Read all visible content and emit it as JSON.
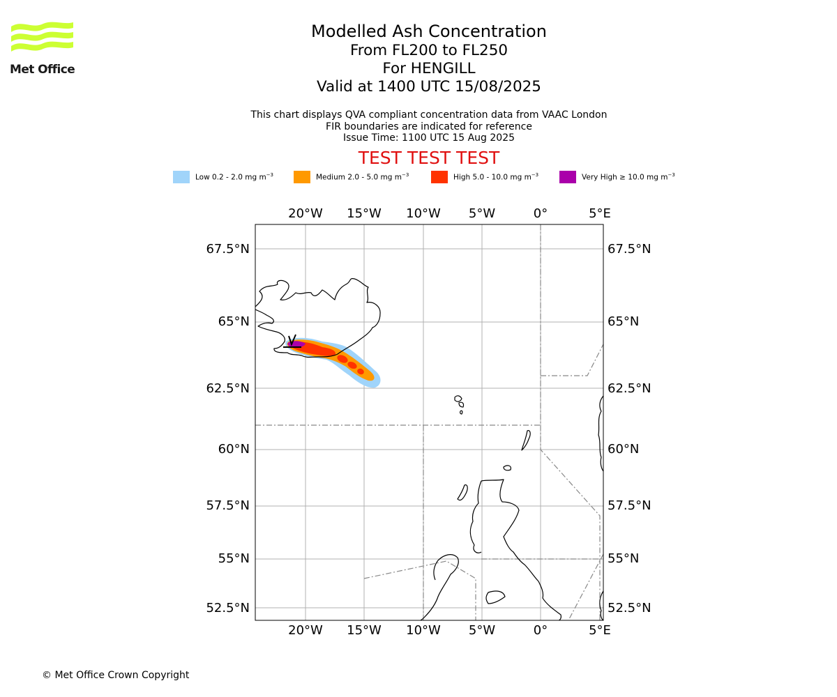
{
  "brand": {
    "name": "Met Office",
    "logo_color": "#ccff33"
  },
  "titles": {
    "main": "Modelled Ash Concentration",
    "levels": "From FL200 to FL250",
    "volcano": "For HENGILL",
    "valid": "Valid at 1400 UTC 15/08/2025"
  },
  "subtitle": {
    "line1": "This chart displays QVA compliant concentration data from VAAC London",
    "line2": "FIR boundaries are indicated for reference",
    "line3": "Issue Time: 1100 UTC 15 Aug 2025"
  },
  "test_banner": "TEST TEST TEST",
  "legend": [
    {
      "label": "Low 0.2 - 2.0 mg m",
      "color": "#a0d4fa"
    },
    {
      "label": "Medium 2.0 - 5.0 mg m",
      "color": "#ff9900"
    },
    {
      "label": "High 5.0 - 10.0 mg m",
      "color": "#ff3300"
    },
    {
      "label": "Very High ≥ 10.0 mg m",
      "color": "#aa00aa"
    }
  ],
  "legend_unit_exponent": "−3",
  "map": {
    "lon_labels": [
      "20°W",
      "15°W",
      "10°W",
      "5°W",
      "0°",
      "5°E"
    ],
    "lat_labels": [
      "67.5°N",
      "65°N",
      "62.5°N",
      "60°N",
      "57.5°N",
      "55°N",
      "52.5°N"
    ],
    "coastline_color": "#000000",
    "fir_color": "#888888"
  },
  "copyright": "© Met Office Crown Copyright"
}
